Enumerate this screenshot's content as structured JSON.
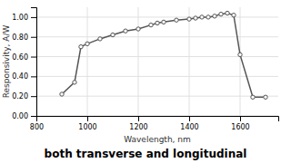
{
  "chart_data": {
    "type": "line",
    "title": "both transverse and longitudinal",
    "xlabel": "Wavelength, nm",
    "ylabel": "Responsivity, A/W",
    "x": [
      900,
      950,
      975,
      1000,
      1050,
      1100,
      1150,
      1200,
      1250,
      1275,
      1300,
      1350,
      1400,
      1425,
      1450,
      1475,
      1500,
      1525,
      1550,
      1575,
      1600,
      1650,
      1700
    ],
    "values": [
      0.22,
      0.34,
      0.7,
      0.73,
      0.78,
      0.82,
      0.86,
      0.88,
      0.92,
      0.94,
      0.95,
      0.97,
      0.98,
      0.99,
      1.0,
      1.0,
      1.01,
      1.03,
      1.04,
      1.02,
      0.62,
      0.19,
      0.19
    ],
    "color": "#555555",
    "marker": "circle",
    "xlim": [
      800,
      1750
    ],
    "ylim": [
      0.0,
      1.1
    ],
    "xticks": [
      800,
      1000,
      1200,
      1400,
      1600
    ],
    "yticks": [
      {
        "value": 0.0,
        "label": "0.00"
      },
      {
        "value": 0.2,
        "label": "0.20"
      },
      {
        "value": 0.4,
        "label": "0.40"
      },
      {
        "value": 0.6,
        "label": "0.60"
      },
      {
        "value": 0.8,
        "label": "0.80"
      },
      {
        "value": 1.0,
        "label": "1.00"
      }
    ],
    "grid": true
  }
}
